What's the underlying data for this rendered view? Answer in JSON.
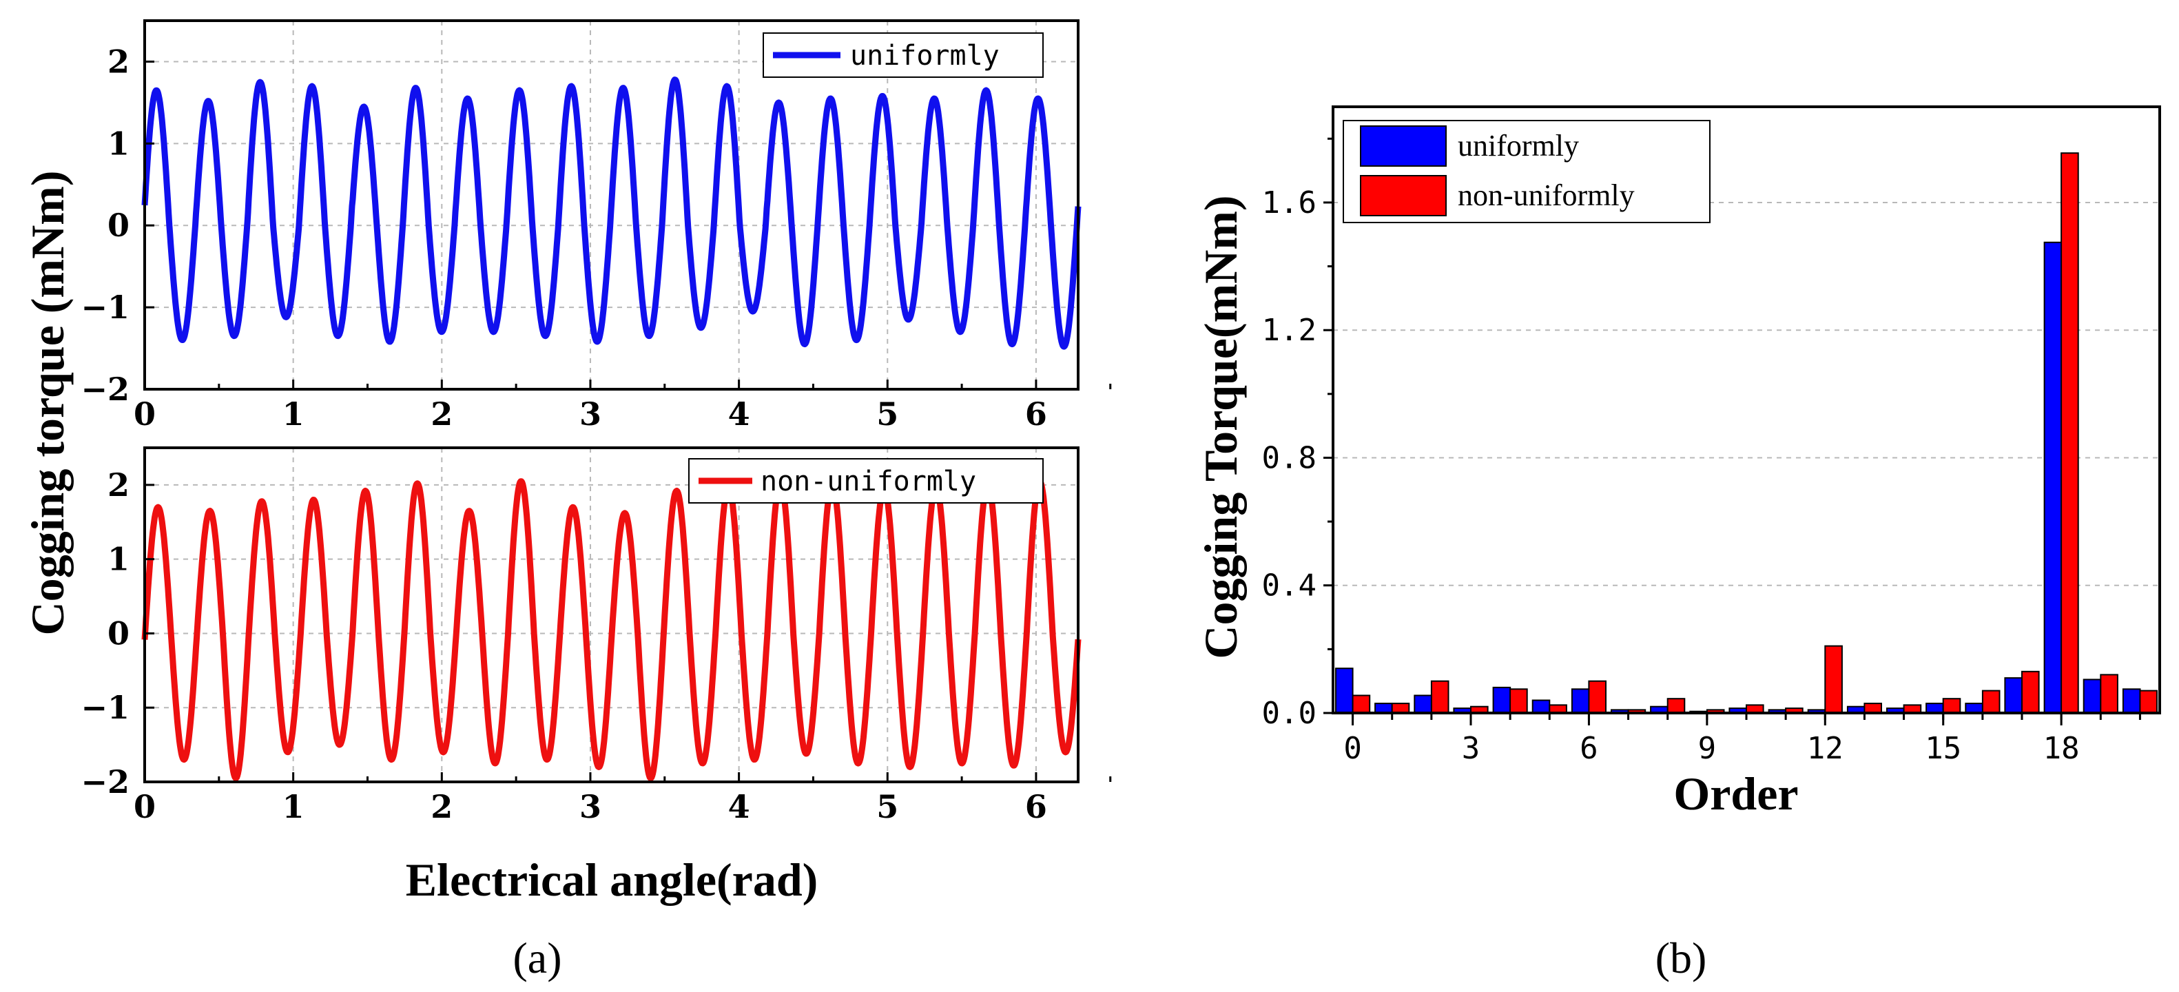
{
  "chart_data": [
    {
      "type": "line",
      "panel": "(a)",
      "ylabel": "Cogging torque (mNm)",
      "xlabel": "Electrical angle(rad)",
      "xlim": [
        0,
        6.2832
      ],
      "ylim": [
        -2,
        2.5
      ],
      "xticks": [
        "0",
        "1",
        "2",
        "3",
        "4",
        "5",
        "6"
      ],
      "yticks": [
        "2",
        "1",
        "0",
        "−1",
        "−2"
      ],
      "subplots": [
        {
          "legend": "uniformly",
          "color": "#1010ee",
          "cycles": 18,
          "peaks": [
            1.65,
            1.52,
            1.75,
            1.7,
            1.45,
            1.68,
            1.55,
            1.65,
            1.7,
            1.68,
            1.78,
            1.7,
            1.5,
            1.55,
            1.58,
            1.55,
            1.65,
            1.55
          ],
          "troughs": [
            -1.4,
            -1.35,
            -1.12,
            -1.35,
            -1.42,
            -1.3,
            -1.3,
            -1.35,
            -1.42,
            -1.35,
            -1.25,
            -1.05,
            -1.45,
            -1.4,
            -1.15,
            -1.3,
            -1.45,
            -1.48
          ]
        },
        {
          "legend": "non-uniformly",
          "color": "#ee1010",
          "cycles": 18,
          "peaks": [
            1.7,
            1.65,
            1.78,
            1.8,
            1.92,
            2.02,
            1.65,
            2.05,
            1.7,
            1.62,
            1.92,
            1.98,
            2.05,
            2.02,
            1.95,
            1.98,
            2.02,
            2.05
          ],
          "troughs": [
            -1.7,
            -1.95,
            -1.6,
            -1.5,
            -1.7,
            -1.6,
            -1.75,
            -1.7,
            -1.8,
            -1.95,
            -1.75,
            -1.7,
            -1.62,
            -1.75,
            -1.8,
            -1.75,
            -1.78,
            -1.6
          ]
        }
      ]
    },
    {
      "type": "bar",
      "panel": "(b)",
      "title": "",
      "xlabel": "Order",
      "ylabel": "Cogging Torque(mNm)",
      "ylim": [
        0,
        1.9
      ],
      "yticks": [
        "0.0",
        "0.4",
        "0.8",
        "1.2",
        "1.6"
      ],
      "xticks": [
        "0",
        "3",
        "6",
        "9",
        "12",
        "15",
        "18"
      ],
      "categories": [
        0,
        1,
        2,
        3,
        4,
        5,
        6,
        7,
        8,
        9,
        10,
        11,
        12,
        13,
        14,
        15,
        16,
        17,
        18,
        19,
        20
      ],
      "series": [
        {
          "name": "uniformly",
          "color": "#0000ff",
          "values": [
            0.14,
            0.03,
            0.055,
            0.015,
            0.08,
            0.04,
            0.075,
            0.01,
            0.02,
            0.005,
            0.015,
            0.01,
            0.01,
            0.02,
            0.015,
            0.03,
            0.03,
            0.11,
            1.475,
            0.105,
            0.075
          ]
        },
        {
          "name": "non-uniformly",
          "color": "#ff0000",
          "values": [
            0.055,
            0.03,
            0.1,
            0.02,
            0.075,
            0.025,
            0.1,
            0.01,
            0.045,
            0.01,
            0.025,
            0.015,
            0.21,
            0.03,
            0.025,
            0.045,
            0.07,
            0.13,
            1.755,
            0.12,
            0.07
          ]
        }
      ]
    }
  ],
  "labels": {
    "panel_a": "(a)",
    "panel_b": "(b)"
  }
}
